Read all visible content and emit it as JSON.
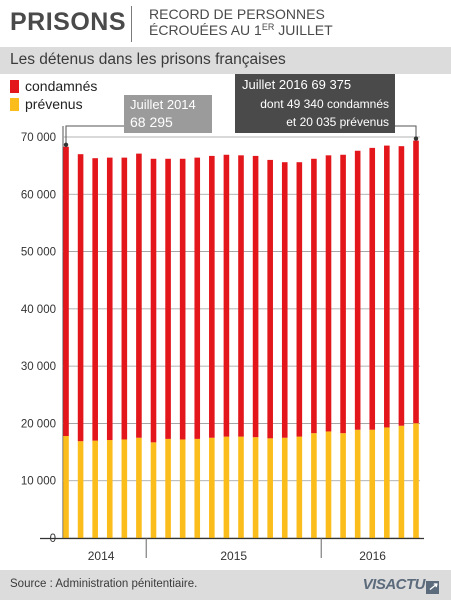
{
  "header": {
    "title": "PRISONS",
    "subtitle_line1": "RECORD DE PERSONNES",
    "subtitle_line2_a": "ÉCROUÉES AU 1",
    "subtitle_line2_sup": "ER",
    "subtitle_line2_b": " JUILLET"
  },
  "subtitle": "Les détenus dans les prisons françaises",
  "callouts": {
    "left_line1": "Juillet 2014",
    "left_line2": "68 295",
    "right_line1": "Juillet 2016  69 375",
    "right_line2": "dont 49 340 condamnés",
    "right_line3": "et 20 035 prévenus"
  },
  "footer": {
    "source": "Source : Administration pénitentiaire.",
    "logo_text": "VISACTU",
    "logo_mark": "↗"
  },
  "colors": {
    "condamnes": "#e3161c",
    "prevenus": "#fbbd1b",
    "callout_left_bg": "#9b9b9b",
    "callout_right_bg": "#4a4a4a",
    "header_band": "#dcdcdc"
  },
  "chart_data": {
    "type": "bar",
    "stacked": true,
    "x": [
      "2014-07",
      "2014-08",
      "2014-09",
      "2014-10",
      "2014-11",
      "2014-12",
      "2015-01",
      "2015-02",
      "2015-03",
      "2015-04",
      "2015-05",
      "2015-06",
      "2015-07",
      "2015-08",
      "2015-09",
      "2015-10",
      "2015-11",
      "2015-12",
      "2016-01",
      "2016-02",
      "2016-03",
      "2016-04",
      "2016-05",
      "2016-06",
      "2016-07"
    ],
    "x_tick_labels": [
      "2014",
      "2015",
      "2016"
    ],
    "series": [
      {
        "name": "prévenus",
        "values": [
          17800,
          16900,
          17000,
          17100,
          17200,
          17500,
          16700,
          17300,
          17200,
          17300,
          17500,
          17700,
          17700,
          17600,
          17400,
          17500,
          17700,
          18300,
          18600,
          18300,
          18900,
          18900,
          19300,
          19600,
          20035
        ]
      },
      {
        "name": "condamnés",
        "values": [
          50495,
          50100,
          49300,
          49300,
          49200,
          49600,
          49500,
          48900,
          49000,
          49100,
          49200,
          49200,
          49100,
          49100,
          48600,
          48100,
          47900,
          47900,
          48200,
          48600,
          48700,
          49200,
          49200,
          48800,
          49340
        ]
      }
    ],
    "ylim": [
      0,
      70000
    ],
    "yticks": [
      0,
      10000,
      20000,
      30000,
      40000,
      50000,
      60000,
      70000
    ],
    "ytick_labels": [
      "0",
      "10 000",
      "20 000",
      "30 000",
      "40 000",
      "50 000",
      "60 000",
      "70 000"
    ],
    "grid": true,
    "legend": "top-left",
    "title": "Les détenus dans les prisons françaises"
  }
}
